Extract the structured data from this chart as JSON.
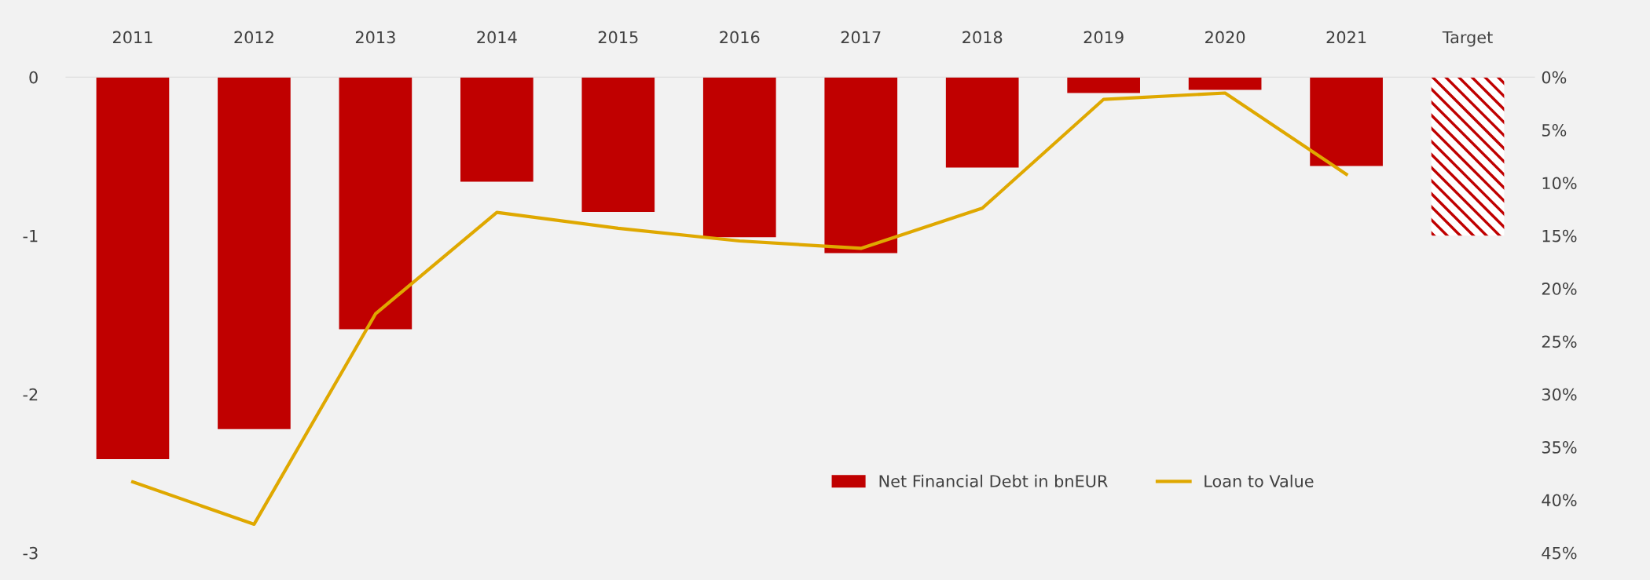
{
  "chart_data": {
    "type": "bar",
    "categories": [
      "2011",
      "2012",
      "2013",
      "2014",
      "2015",
      "2016",
      "2017",
      "2018",
      "2019",
      "2020",
      "2021",
      "Target"
    ],
    "series": [
      {
        "name": "Net Financial Debt in bnEUR",
        "color": "#c00000",
        "values": [
          -2.41,
          -2.22,
          -1.59,
          -0.66,
          -0.85,
          -1.01,
          -1.11,
          -0.57,
          -0.1,
          -0.08,
          -0.56,
          null
        ]
      },
      {
        "type": "bar",
        "color": "#c00000",
        "values": [
          null,
          null,
          null,
          null,
          null,
          null,
          null,
          null,
          null,
          null,
          null,
          -1.0
        ]
      },
      {
        "name": "Loan to Value",
        "type": "line",
        "axis": "y2",
        "color": "#dfa800",
        "values": [
          38.3,
          42.3,
          22.4,
          12.8,
          14.3,
          15.5,
          16.2,
          12.4,
          2.1,
          1.5,
          9.2,
          null
        ]
      }
    ],
    "ylim": [
      -3,
      0
    ],
    "yticks": [
      {
        "value": -3,
        "label": "-3"
      },
      {
        "value": -2,
        "label": "-2"
      },
      {
        "value": -1,
        "label": "-1"
      },
      0
    ],
    "y2lim": [
      45,
      0
    ],
    "y2ticks": [
      {
        "value": 0,
        "label": "0%"
      },
      {
        "value": 5,
        "label": "5%"
      },
      {
        "value": 10,
        "label": "10%"
      },
      {
        "value": 15,
        "label": "15%"
      },
      {
        "value": 20,
        "label": "20%"
      },
      {
        "value": 25,
        "label": "25%"
      },
      {
        "value": 30,
        "label": "30%"
      },
      {
        "value": 35,
        "label": "35%"
      },
      {
        "value": 40,
        "label": "40%"
      },
      {
        "value": 45,
        "label": "45%"
      }
    ],
    "legend": "bottom right",
    "grid": false
  }
}
